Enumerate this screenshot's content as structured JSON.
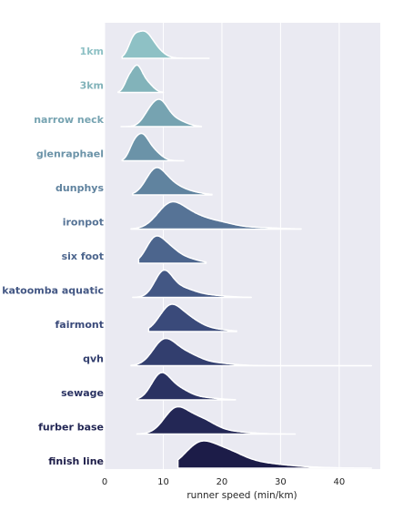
{
  "chart_data": {
    "type": "ridgeline",
    "title": "",
    "xlabel": "runner speed (min/km)",
    "ylabel": "",
    "xlim": [
      0,
      47
    ],
    "xticks": [
      0,
      10,
      20,
      30,
      40
    ],
    "xtick_labels": [
      "0",
      "10",
      "20",
      "30",
      "40"
    ],
    "grid": true,
    "background": "#eaeaf2",
    "series": [
      {
        "name": "1km",
        "color": "#8ec1c5",
        "min": 3.0,
        "max": 17.8,
        "peaks": [
          [
            6.5,
            1.0,
            1.4
          ],
          [
            4.8,
            0.45,
            0.8
          ],
          [
            8.5,
            0.35,
            1.5
          ]
        ]
      },
      {
        "name": "3km",
        "color": "#82b3ba",
        "min": 2.3,
        "max": 10.0,
        "peaks": [
          [
            5.5,
            1.0,
            0.9
          ],
          [
            4.0,
            0.4,
            0.7
          ],
          [
            7.3,
            0.35,
            1.0
          ]
        ]
      },
      {
        "name": "narrow neck",
        "color": "#76a3b1",
        "min": 2.8,
        "max": 16.5,
        "peaks": [
          [
            9.5,
            0.95,
            1.3
          ],
          [
            7.6,
            0.5,
            1.2
          ],
          [
            12.0,
            0.3,
            1.8
          ]
        ]
      },
      {
        "name": "glenraphael",
        "color": "#6b93a8",
        "min": 3.0,
        "max": 13.5,
        "peaks": [
          [
            6.3,
            1.0,
            1.1
          ],
          [
            4.8,
            0.4,
            0.8
          ],
          [
            8.3,
            0.4,
            1.3
          ]
        ]
      },
      {
        "name": "dunphys",
        "color": "#60839f",
        "min": 4.8,
        "max": 18.3,
        "peaks": [
          [
            8.5,
            0.8,
            1.6
          ],
          [
            10.5,
            0.4,
            2.0
          ],
          [
            13.5,
            0.15,
            2.5
          ]
        ]
      },
      {
        "name": "ironpot",
        "color": "#567396",
        "min": 4.5,
        "max": 33.5,
        "peaks": [
          [
            11.0,
            0.5,
            2.2
          ],
          [
            14.5,
            0.35,
            3.0
          ],
          [
            20.0,
            0.12,
            2.5
          ],
          [
            26.0,
            0.04,
            3.5
          ]
        ]
      },
      {
        "name": "six foot",
        "color": "#4c658d",
        "min": 5.8,
        "max": 17.3,
        "peaks": [
          [
            8.5,
            0.75,
            1.5
          ],
          [
            11.0,
            0.4,
            1.6
          ],
          [
            14.0,
            0.15,
            2.0
          ]
        ]
      },
      {
        "name": "katoomba aquatic",
        "color": "#435784",
        "min": 4.8,
        "max": 25.0,
        "peaks": [
          [
            10.0,
            0.85,
            1.5
          ],
          [
            13.0,
            0.3,
            2.2
          ],
          [
            17.5,
            0.08,
            3.0
          ]
        ]
      },
      {
        "name": "fairmont",
        "color": "#3a4a7a",
        "min": 7.5,
        "max": 22.5,
        "peaks": [
          [
            11.0,
            0.6,
            1.8
          ],
          [
            14.0,
            0.35,
            2.2
          ],
          [
            18.5,
            0.06,
            2.5
          ]
        ]
      },
      {
        "name": "qvh",
        "color": "#323e6e",
        "min": 4.5,
        "max": 45.5,
        "peaks": [
          [
            10.0,
            0.55,
            1.9
          ],
          [
            13.5,
            0.3,
            2.5
          ],
          [
            19.0,
            0.06,
            3.0
          ]
        ]
      },
      {
        "name": "sewage",
        "color": "#2a3262",
        "min": 5.5,
        "max": 22.3,
        "peaks": [
          [
            9.5,
            0.7,
            1.6
          ],
          [
            12.5,
            0.3,
            2.0
          ],
          [
            17.0,
            0.06,
            2.5
          ]
        ]
      },
      {
        "name": "furber base",
        "color": "#232755",
        "min": 5.5,
        "max": 32.5,
        "peaks": [
          [
            12.0,
            0.55,
            2.0
          ],
          [
            16.0,
            0.35,
            2.5
          ],
          [
            21.0,
            0.06,
            3.5
          ]
        ]
      },
      {
        "name": "finish line",
        "color": "#1c1c48",
        "min": 12.5,
        "max": 45.5,
        "peaks": [
          [
            16.0,
            0.5,
            2.5
          ],
          [
            20.5,
            0.35,
            3.0
          ],
          [
            26.0,
            0.1,
            4.0
          ],
          [
            32.0,
            0.03,
            5.0
          ]
        ]
      }
    ]
  }
}
